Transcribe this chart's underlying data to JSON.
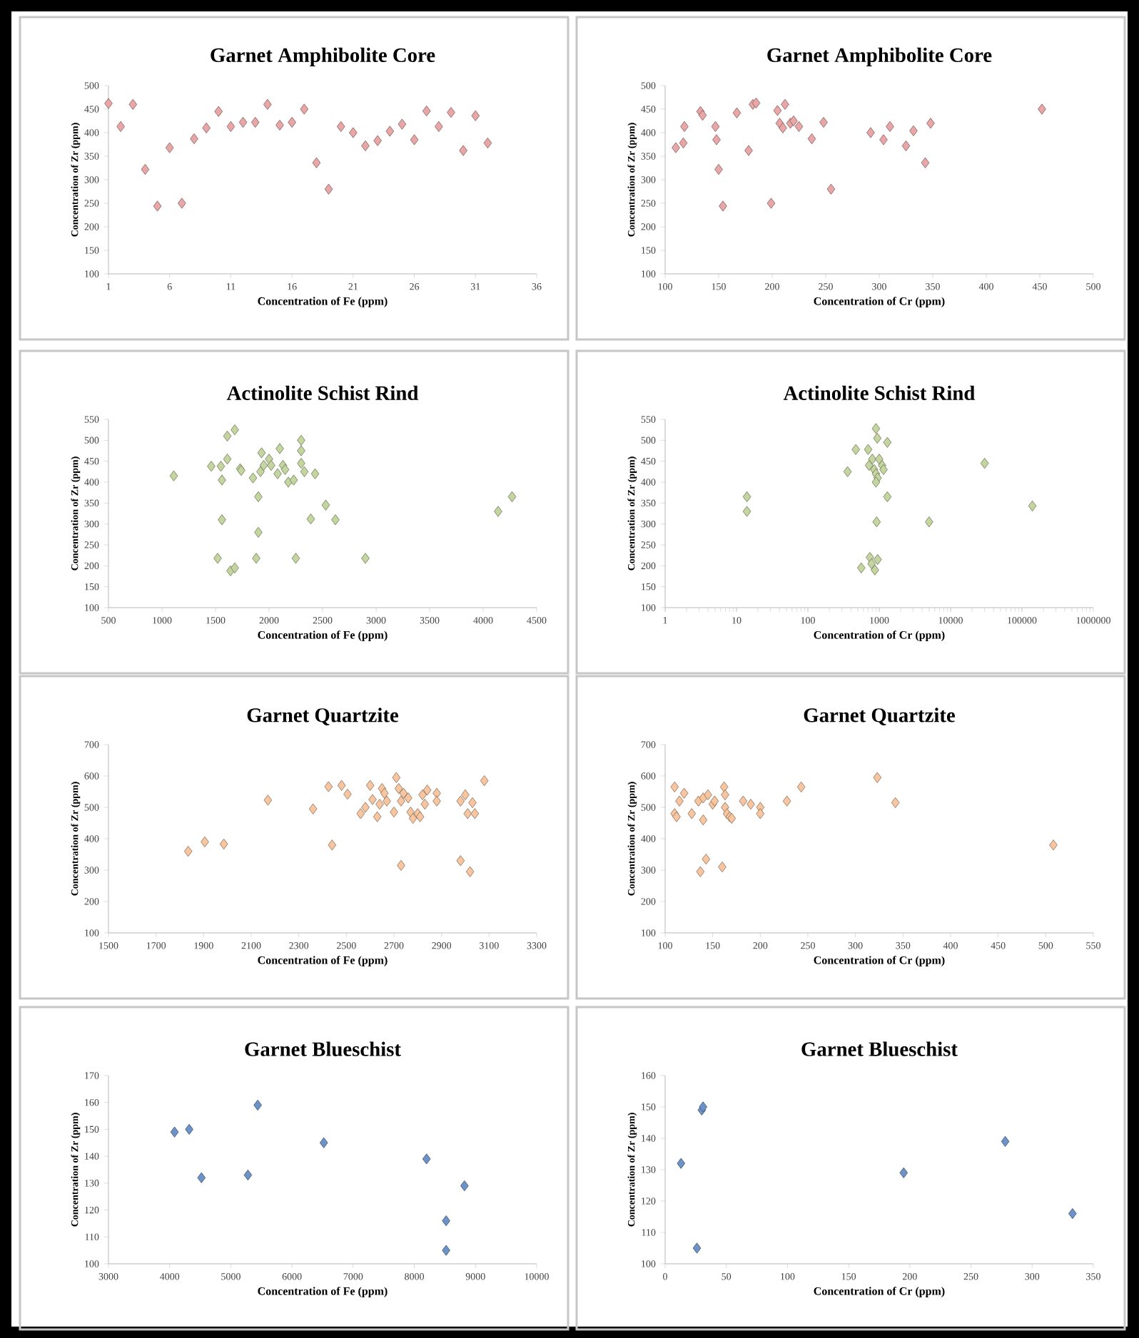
{
  "chart_data": [
    {
      "type": "scatter",
      "title": "Garnet Amphibolite Core",
      "xlabel": "Concentration of Fe (ppm)",
      "ylabel": "Concentration of Zr (ppm)",
      "color": "#e8a7a6",
      "marker": "diamond",
      "xlim": [
        1,
        36
      ],
      "ylim": [
        100,
        500
      ],
      "xticks": [
        1,
        6,
        11,
        16,
        21,
        26,
        31,
        36
      ],
      "yticks": [
        100,
        150,
        200,
        250,
        300,
        350,
        400,
        450,
        500
      ],
      "x": [
        1,
        2,
        3,
        4,
        5,
        6,
        7,
        8,
        9,
        10,
        11,
        12,
        13,
        14,
        15,
        16,
        17,
        18,
        19,
        20,
        21,
        22,
        23,
        24,
        25,
        26,
        27,
        28,
        29,
        30,
        31,
        32
      ],
      "values": [
        462,
        413,
        460,
        322,
        244,
        368,
        250,
        387,
        410,
        445,
        413,
        422,
        422,
        460,
        416,
        422,
        450,
        336,
        280,
        413,
        400,
        372,
        383,
        403,
        418,
        385,
        446,
        413,
        443,
        362,
        436,
        378
      ]
    },
    {
      "type": "scatter",
      "title": "Garnet Amphibolite Core",
      "xlabel": "Concentration of Cr (ppm)",
      "ylabel": "Concentration of Zr (ppm)",
      "color": "#e8a7a6",
      "marker": "diamond",
      "xlim": [
        100,
        500
      ],
      "ylim": [
        100,
        500
      ],
      "xticks": [
        100,
        150,
        200,
        250,
        300,
        350,
        400,
        450,
        500
      ],
      "yticks": [
        100,
        150,
        200,
        250,
        300,
        350,
        400,
        450,
        500
      ],
      "x": [
        110,
        117,
        118,
        133,
        135,
        147,
        148,
        150,
        154,
        167,
        178,
        182,
        185,
        199,
        205,
        207,
        210,
        212,
        217,
        220,
        225,
        237,
        248,
        255,
        292,
        304,
        310,
        325,
        332,
        343,
        348,
        452
      ],
      "values": [
        368,
        378,
        413,
        445,
        437,
        413,
        385,
        322,
        244,
        442,
        362,
        460,
        463,
        250,
        447,
        420,
        410,
        460,
        420,
        425,
        413,
        387,
        422,
        280,
        400,
        385,
        413,
        372,
        404,
        336,
        420,
        450
      ]
    },
    {
      "type": "scatter",
      "title": "Actinolite Schist Rind",
      "xlabel": "Concentration of Fe (ppm)",
      "ylabel": "Concentration of Zr (ppm)",
      "color": "#c5d5a0",
      "marker": "diamond",
      "xlim": [
        500,
        4500
      ],
      "ylim": [
        100,
        550
      ],
      "xticks": [
        500,
        1000,
        1500,
        2000,
        2500,
        3000,
        3500,
        4000,
        4500
      ],
      "yticks": [
        100,
        150,
        200,
        250,
        300,
        350,
        400,
        450,
        500,
        550
      ],
      "x": [
        1110,
        1460,
        1520,
        1550,
        1560,
        1560,
        1610,
        1610,
        1640,
        1680,
        1680,
        1730,
        1740,
        1850,
        1880,
        1900,
        1900,
        1920,
        1930,
        1950,
        2000,
        2020,
        2080,
        2100,
        2130,
        2150,
        2180,
        2230,
        2250,
        2300,
        2300,
        2300,
        2330,
        2390,
        2430,
        2530,
        2620,
        2900,
        4140,
        4270
      ],
      "values": [
        415,
        438,
        218,
        438,
        405,
        310,
        455,
        510,
        188,
        195,
        525,
        432,
        428,
        410,
        218,
        365,
        280,
        425,
        470,
        440,
        455,
        440,
        420,
        480,
        440,
        430,
        400,
        405,
        218,
        500,
        475,
        445,
        425,
        312,
        420,
        345,
        310,
        218,
        330,
        365
      ]
    },
    {
      "type": "scatter",
      "title": "Actinolite Schist Rind",
      "xlabel": "Concentration of Cr (ppm)",
      "ylabel": "Concentration of Zr (ppm)",
      "color": "#c5d5a0",
      "marker": "diamond",
      "log": "x",
      "xlim": [
        1,
        1000000
      ],
      "ylim": [
        100,
        550
      ],
      "xticks": [
        1,
        10,
        100,
        1000,
        10000,
        100000,
        1000000
      ],
      "yticks": [
        100,
        150,
        200,
        250,
        300,
        350,
        400,
        450,
        500,
        550
      ],
      "x": [
        14,
        14,
        360,
        470,
        700,
        720,
        740,
        560,
        900,
        940,
        1300,
        800,
        850,
        900,
        950,
        900,
        1000,
        1100,
        1150,
        1300,
        920,
        950,
        870,
        780,
        5000,
        30000,
        140000
      ],
      "values": [
        365,
        330,
        425,
        478,
        478,
        440,
        220,
        195,
        528,
        505,
        495,
        455,
        430,
        420,
        410,
        400,
        455,
        440,
        430,
        365,
        305,
        215,
        190,
        205,
        305,
        445,
        343
      ]
    },
    {
      "type": "scatter",
      "title": "Garnet Quartzite",
      "xlabel": "Concentration of Fe (ppm)",
      "ylabel": "Concentration of Zr (ppm)",
      "color": "#f7c59f",
      "marker": "diamond",
      "xlim": [
        1500,
        3300
      ],
      "ylim": [
        100,
        700
      ],
      "xticks": [
        1500,
        1700,
        1900,
        2100,
        2300,
        2500,
        2700,
        2900,
        3100,
        3300
      ],
      "yticks": [
        100,
        200,
        300,
        400,
        500,
        600,
        700
      ],
      "x": [
        1835,
        1905,
        1985,
        2170,
        2360,
        2425,
        2440,
        2480,
        2505,
        2560,
        2580,
        2600,
        2610,
        2630,
        2640,
        2650,
        2660,
        2670,
        2700,
        2710,
        2720,
        2730,
        2740,
        2760,
        2770,
        2780,
        2800,
        2810,
        2820,
        2830,
        2840,
        2880,
        2880,
        2980,
        2980,
        3000,
        3010,
        3020,
        3030,
        3040,
        3080,
        2730
      ],
      "values": [
        360,
        390,
        383,
        523,
        495,
        566,
        380,
        570,
        542,
        480,
        500,
        570,
        525,
        470,
        510,
        560,
        545,
        520,
        485,
        595,
        560,
        520,
        545,
        530,
        485,
        465,
        480,
        470,
        540,
        510,
        555,
        545,
        520,
        520,
        330,
        540,
        480,
        295,
        515,
        480,
        585,
        315
      ]
    },
    {
      "type": "scatter",
      "title": "Garnet Quartzite",
      "xlabel": "Concentration of Cr (ppm)",
      "ylabel": "Concentration of Zr (ppm)",
      "color": "#f7c59f",
      "marker": "diamond",
      "xlim": [
        100,
        550
      ],
      "ylim": [
        100,
        700
      ],
      "xticks": [
        100,
        150,
        200,
        250,
        300,
        350,
        400,
        450,
        500,
        550
      ],
      "yticks": [
        100,
        200,
        300,
        400,
        500,
        600,
        700
      ],
      "x": [
        110,
        110,
        112,
        115,
        120,
        128,
        135,
        137,
        140,
        140,
        143,
        145,
        150,
        152,
        160,
        162,
        163,
        163,
        165,
        168,
        170,
        182,
        190,
        200,
        200,
        228,
        243,
        323,
        342,
        508
      ],
      "values": [
        565,
        480,
        470,
        520,
        545,
        480,
        520,
        295,
        530,
        460,
        335,
        540,
        510,
        520,
        310,
        565,
        540,
        500,
        480,
        470,
        465,
        520,
        510,
        500,
        480,
        520,
        565,
        595,
        515,
        380
      ]
    },
    {
      "type": "scatter",
      "title": "Garnet Blueschist",
      "xlabel": "Concentration of Fe (ppm)",
      "ylabel": "Concentration of Zr (ppm)",
      "color": "#6d93c6",
      "marker": "diamond",
      "xlim": [
        3000,
        10000
      ],
      "ylim": [
        100,
        170
      ],
      "xticks": [
        3000,
        4000,
        5000,
        6000,
        7000,
        8000,
        9000,
        10000
      ],
      "yticks": [
        100,
        110,
        120,
        130,
        140,
        150,
        160,
        170
      ],
      "x": [
        4080,
        4320,
        4520,
        5280,
        5440,
        6520,
        8200,
        8520,
        8520,
        8820
      ],
      "values": [
        149,
        150,
        132,
        133,
        159,
        145,
        139,
        116,
        105,
        129
      ]
    },
    {
      "type": "scatter",
      "title": "Garnet Blueschist",
      "xlabel": "Concentration of Cr (ppm)",
      "ylabel": "Concentration of Zr (ppm)",
      "color": "#6d93c6",
      "marker": "diamond",
      "xlim": [
        0,
        350
      ],
      "ylim": [
        100,
        160
      ],
      "xticks": [
        0,
        50,
        100,
        150,
        200,
        250,
        300,
        350
      ],
      "yticks": [
        100,
        110,
        120,
        130,
        140,
        150,
        160
      ],
      "x": [
        13,
        26,
        30,
        31,
        195,
        278,
        333
      ],
      "values": [
        132,
        105,
        149,
        150,
        129,
        139,
        116
      ]
    }
  ]
}
